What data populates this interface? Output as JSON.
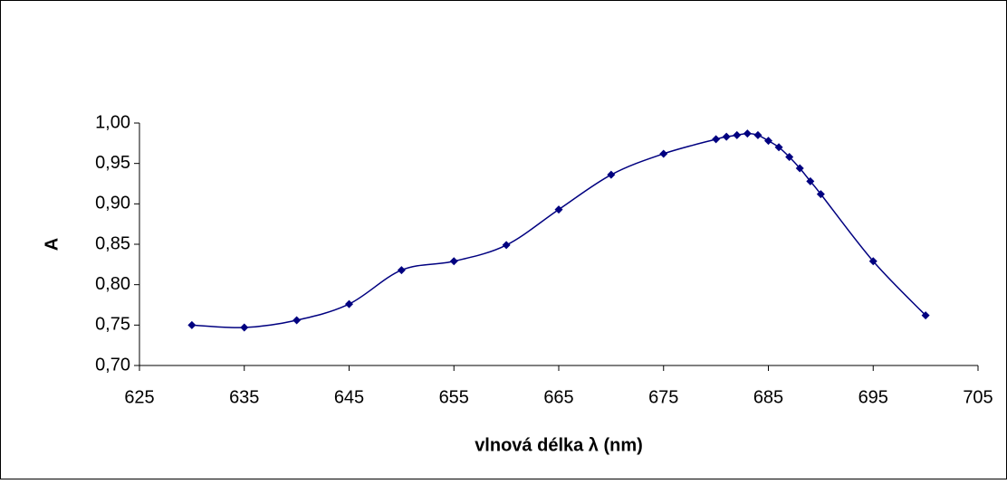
{
  "chart_data": {
    "type": "line",
    "x_label": "vlnová délka λ (nm)",
    "y_label": "A",
    "x": [
      630,
      635,
      640,
      645,
      650,
      655,
      660,
      665,
      670,
      675,
      680,
      681,
      682,
      683,
      684,
      685,
      686,
      687,
      688,
      689,
      690,
      695,
      700
    ],
    "series": [
      {
        "color": "#000080",
        "values": [
          0.75,
          0.747,
          0.756,
          0.776,
          0.818,
          0.829,
          0.849,
          0.893,
          0.936,
          0.962,
          0.98,
          0.983,
          0.985,
          0.987,
          0.985,
          0.978,
          0.97,
          0.958,
          0.944,
          0.928,
          0.912,
          0.829,
          0.762
        ]
      }
    ],
    "xlim": [
      625,
      705
    ],
    "xticks": [
      625,
      635,
      645,
      655,
      665,
      675,
      685,
      695,
      705
    ],
    "ylim": [
      0.7,
      1.0
    ],
    "yticks": [
      {
        "value": 0.7,
        "label": "0,70"
      },
      {
        "value": 0.75,
        "label": "0,75"
      },
      {
        "value": 0.8,
        "label": "0,80"
      },
      {
        "value": 0.85,
        "label": "0,85"
      },
      {
        "value": 0.9,
        "label": "0,90"
      },
      {
        "value": 0.95,
        "label": "0,95"
      },
      {
        "value": 1.0,
        "label": "1,00"
      }
    ],
    "grid": false,
    "smooth": true
  }
}
